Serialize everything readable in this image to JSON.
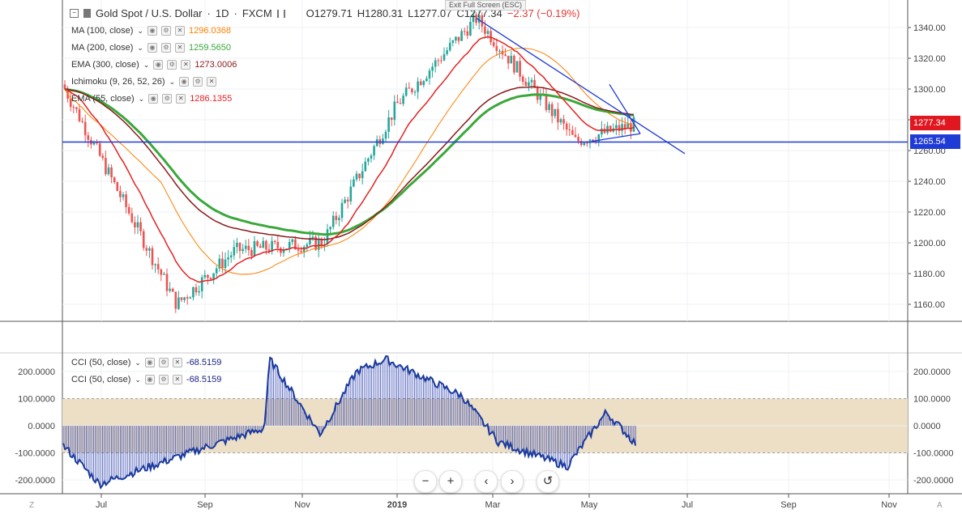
{
  "header": {
    "symbol": "Gold Spot / U.S. Dollar",
    "interval": "1D",
    "source": "FXCM",
    "open": "O1279.71",
    "high": "H1280.31",
    "low": "L1277.07",
    "close": "C1277.34",
    "change": "−2.37 (−0.19%)",
    "tooltip": "Exit Full Screen (ESC)"
  },
  "indicators": [
    {
      "label": "MA (100, close)",
      "value": "1296.0368",
      "color": "#ff7f00"
    },
    {
      "label": "MA (200, close)",
      "value": "1259.5650",
      "color": "#3aa83a"
    },
    {
      "label": "EMA (300, close)",
      "value": "1273.0006",
      "color": "#8b1a1a"
    },
    {
      "label": "Ichimoku (9, 26, 52, 26)",
      "value": "",
      "color": "#2962ff"
    },
    {
      "label": "EMA (55, close)",
      "value": "1286.1355",
      "color": "#e32222"
    }
  ],
  "cci_indicators": [
    {
      "label": "CCI (50, close)",
      "value": "-68.5159",
      "color": "#1a237e"
    },
    {
      "label": "CCI (50, close)",
      "value": "-68.5159",
      "color": "#1a237e"
    }
  ],
  "price_tags": [
    {
      "value": "1277.34",
      "color": "#e0171f"
    },
    {
      "value": "1265.54",
      "color": "#1f3bd6"
    }
  ],
  "controls": {
    "zoom_out": "−",
    "zoom_in": "+",
    "back": "‹",
    "forward": "›",
    "reset": "↺"
  },
  "corners": {
    "left": "Z",
    "right": "A"
  },
  "colors": {
    "candle_up": "#26a69a",
    "candle_down": "#ef5350",
    "trendline": "#1f3bd6",
    "cci_band": "#eddfc6",
    "cci": "#1a3a9e"
  },
  "chart_data": [
    {
      "type": "candlestick",
      "title": "Gold Spot / U.S. Dollar, 1D, FXCM",
      "x_ticks": [
        "Jul",
        "Sep",
        "Nov",
        "2019",
        "Mar",
        "May",
        "Jul",
        "Sep",
        "Nov"
      ],
      "y_ticks": [
        1160,
        1180,
        1200,
        1220,
        1240,
        1260,
        1280,
        1300,
        1320,
        1340
      ],
      "ylim": [
        1150,
        1350
      ],
      "key_points": [
        {
          "label": "start (Jun 2018)",
          "price": 1303
        },
        {
          "label": "low (Aug 2018)",
          "price": 1160
        },
        {
          "label": "Sep 2018",
          "price": 1195
        },
        {
          "label": "Nov 2018",
          "price": 1200
        },
        {
          "label": "Jan 2019",
          "price": 1290
        },
        {
          "label": "high (Feb 2019)",
          "price": 1346
        },
        {
          "label": "Apr 2019",
          "price": 1266
        },
        {
          "label": "last (Jun 2019)",
          "price": 1277.34
        }
      ],
      "series": [
        {
          "name": "MA (100, close)",
          "last": 1296.0368
        },
        {
          "name": "MA (200, close)",
          "last": 1259.565
        },
        {
          "name": "EMA (300, close)",
          "last": 1273.0006
        },
        {
          "name": "EMA (55, close)",
          "last": 1286.1355
        }
      ],
      "horizontal_line": 1265.54,
      "grid": true
    },
    {
      "type": "line",
      "title": "CCI (50, close)",
      "y_ticks": [
        -200,
        -100,
        0,
        100,
        200
      ],
      "ylim": [
        -230,
        270
      ],
      "band": [
        -100,
        100
      ],
      "last": -68.5159,
      "key_points": [
        {
          "label": "Jun 2018",
          "value": -70
        },
        {
          "label": "Jul 2018",
          "value": -215
        },
        {
          "label": "Sep 2018",
          "value": -80
        },
        {
          "label": "Oct 2018",
          "value": -10
        },
        {
          "label": "Oct 2018 spike",
          "value": 245
        },
        {
          "label": "Nov 2018",
          "value": -30
        },
        {
          "label": "Dec 2018",
          "value": 200
        },
        {
          "label": "Jan 2019",
          "value": 245
        },
        {
          "label": "Feb 2019",
          "value": 110
        },
        {
          "label": "Mar 2019",
          "value": -60
        },
        {
          "label": "Apr 2019",
          "value": -150
        },
        {
          "label": "May 2019",
          "value": 50
        },
        {
          "label": "Jun 2019",
          "value": -68.5
        }
      ],
      "grid": true
    }
  ]
}
